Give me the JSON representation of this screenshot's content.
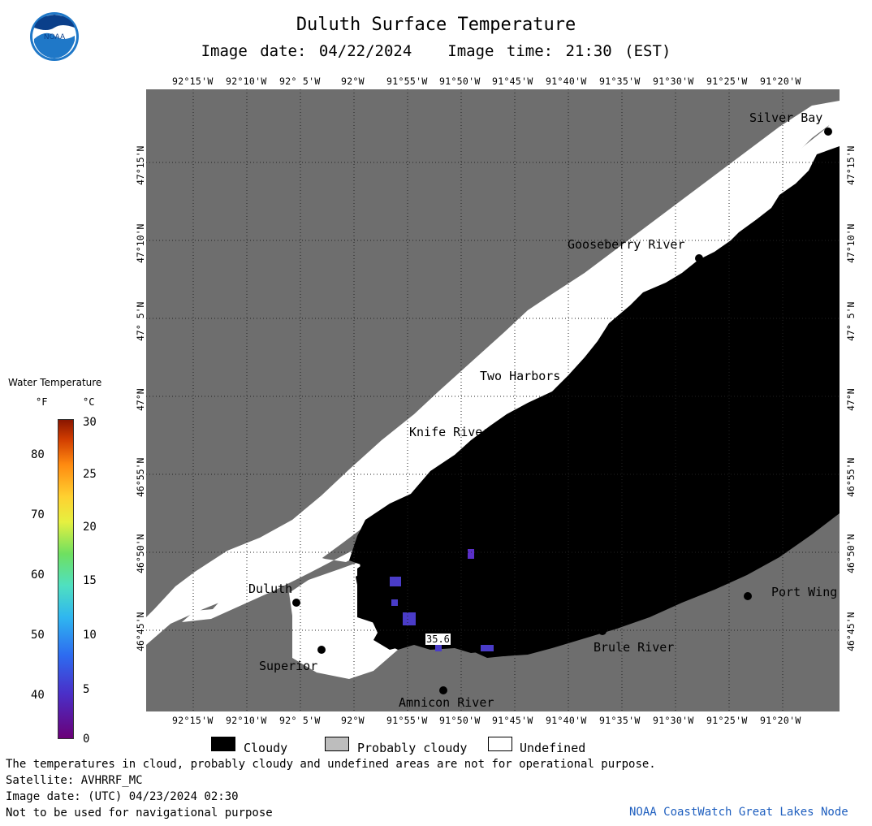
{
  "header": {
    "title": "Duluth Surface Temperature",
    "image_date": "Image date: 04/22/2024",
    "image_time": "Image time: 21:30 (EST)",
    "logo_text": "NOAA"
  },
  "map": {
    "lon_labels": [
      "92°15'W",
      "92°10'W",
      "92° 5'W",
      "92°W",
      "91°55'W",
      "91°50'W",
      "91°45'W",
      "91°40'W",
      "91°35'W",
      "91°30'W",
      "91°25'W",
      "91°20'W"
    ],
    "lat_labels": [
      "47°15'N",
      "47°10'N",
      "47° 5'N",
      "47°N",
      "46°55'N",
      "46°50'N",
      "46°45'N"
    ],
    "places": [
      "Silver Bay",
      "Gooseberry River",
      "Two Harbors",
      "Knife River",
      "Duluth",
      "Superior",
      "Amnicon River",
      "Brule River",
      "Port Wing"
    ],
    "sample_value": "35.6",
    "colors": {
      "land": "#6e6e6e",
      "cloudy": "#000000",
      "undefined": "#ffffff",
      "water_cold": "#4a3cc8"
    }
  },
  "legend": {
    "title": "Water Temperature",
    "unit_f": "°F",
    "unit_c": "°C",
    "f_ticks": [
      "80",
      "70",
      "60",
      "50",
      "40"
    ],
    "c_ticks": [
      "30",
      "25",
      "20",
      "15",
      "10",
      "5",
      "0"
    ],
    "cloudy": "Cloudy",
    "probably_cloudy": "Probably cloudy",
    "undefined": "Undefined"
  },
  "footer": {
    "disclaimer": "The temperatures in cloud, probably cloudy and undefined areas are not for operational purpose.",
    "satellite": "Satellite: AVHRRF_MC",
    "utc_date": "Image date: (UTC) 04/23/2024  02:30",
    "nav_warning": "Not to be used for navigational purpose",
    "credit": "NOAA CoastWatch Great Lakes Node"
  }
}
